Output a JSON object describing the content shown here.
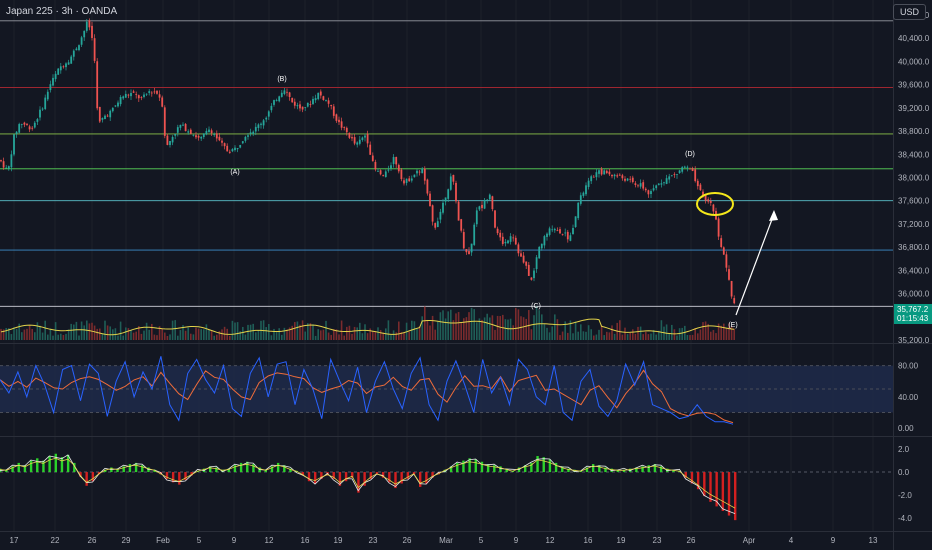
{
  "header": {
    "title": "Japan 225 · 3h · OANDA",
    "currency": "USD"
  },
  "colors": {
    "up": "#26a69a",
    "down": "#ef5350",
    "volume_ma": "#e3d34a",
    "stoch_k": "#2962ff",
    "stoch_d": "#ef6c3a",
    "hist_up": "#2bd32b",
    "hist_down": "#d32020",
    "circle": "#f5e81b",
    "arrow": "#ffffff"
  },
  "chart_data": [
    {
      "type": "candlestick",
      "instrument": "Japan 225",
      "timeframe": "3h",
      "ylim": [
        35200,
        40800
      ],
      "y_ticks": [
        "40,800.0",
        "40,400.0",
        "40,000.0",
        "39,600.0",
        "39,200.0",
        "38,800.0",
        "38,400.0",
        "38,000.0",
        "37,600.0",
        "37,200.0",
        "36,800.0",
        "36,400.0",
        "36,000.0",
        "35,200.0"
      ],
      "x_ticks": [
        "17",
        "22",
        "26",
        "29",
        "Feb",
        "5",
        "9",
        "12",
        "16",
        "19",
        "23",
        "26",
        "Mar",
        "5",
        "9",
        "12",
        "16",
        "19",
        "23",
        "26",
        "Apr",
        "4",
        "9",
        "13"
      ],
      "price_path": [
        [
          0,
          38300
        ],
        [
          8,
          38100
        ],
        [
          14,
          38700
        ],
        [
          20,
          38950
        ],
        [
          32,
          38850
        ],
        [
          42,
          39200
        ],
        [
          50,
          39600
        ],
        [
          60,
          39900
        ],
        [
          70,
          40050
        ],
        [
          80,
          40350
        ],
        [
          88,
          40700
        ],
        [
          94,
          40250
        ],
        [
          98,
          38900
        ],
        [
          104,
          39050
        ],
        [
          112,
          39150
        ],
        [
          122,
          39400
        ],
        [
          132,
          39450
        ],
        [
          142,
          39350
        ],
        [
          150,
          39500
        ],
        [
          158,
          39450
        ],
        [
          162,
          39300
        ],
        [
          166,
          38500
        ],
        [
          172,
          38700
        ],
        [
          180,
          38900
        ],
        [
          190,
          38800
        ],
        [
          200,
          38650
        ],
        [
          210,
          38850
        ],
        [
          220,
          38600
        ],
        [
          228,
          38450
        ],
        [
          236,
          38500
        ],
        [
          246,
          38750
        ],
        [
          256,
          38850
        ],
        [
          266,
          39050
        ],
        [
          276,
          39350
        ],
        [
          284,
          39550
        ],
        [
          292,
          39300
        ],
        [
          300,
          39200
        ],
        [
          308,
          39250
        ],
        [
          318,
          39450
        ],
        [
          328,
          39300
        ],
        [
          338,
          38950
        ],
        [
          348,
          38750
        ],
        [
          356,
          38550
        ],
        [
          366,
          38750
        ],
        [
          374,
          38150
        ],
        [
          384,
          38000
        ],
        [
          394,
          38350
        ],
        [
          404,
          37900
        ],
        [
          414,
          38050
        ],
        [
          422,
          38150
        ],
        [
          428,
          37650
        ],
        [
          434,
          37100
        ],
        [
          442,
          37500
        ],
        [
          452,
          38050
        ],
        [
          458,
          37350
        ],
        [
          464,
          36800
        ],
        [
          470,
          36650
        ],
        [
          476,
          37450
        ],
        [
          482,
          37500
        ],
        [
          490,
          37750
        ],
        [
          496,
          37050
        ],
        [
          504,
          36850
        ],
        [
          512,
          37050
        ],
        [
          520,
          36650
        ],
        [
          526,
          36450
        ],
        [
          532,
          36200
        ],
        [
          538,
          36750
        ],
        [
          544,
          36950
        ],
        [
          552,
          37150
        ],
        [
          562,
          37050
        ],
        [
          570,
          36950
        ],
        [
          578,
          37550
        ],
        [
          586,
          37850
        ],
        [
          594,
          38050
        ],
        [
          602,
          38100
        ],
        [
          612,
          38050
        ],
        [
          622,
          38000
        ],
        [
          634,
          37900
        ],
        [
          642,
          37850
        ],
        [
          650,
          37700
        ],
        [
          658,
          37900
        ],
        [
          668,
          38000
        ],
        [
          676,
          38050
        ],
        [
          684,
          38200
        ],
        [
          692,
          38100
        ],
        [
          698,
          37800
        ],
        [
          706,
          37600
        ],
        [
          712,
          37550
        ],
        [
          716,
          37250
        ],
        [
          720,
          36900
        ],
        [
          726,
          36500
        ],
        [
          732,
          35900
        ],
        [
          736,
          35780
        ]
      ],
      "horizontal_levels": [
        40700,
        39550,
        38750,
        38150,
        37600,
        36750,
        35780
      ],
      "wave_labels": [
        "(A)",
        "(B)",
        "(C)",
        "(D)",
        "(E)"
      ],
      "price_tag": {
        "price": "35,767.2",
        "countdown": "01:15:43"
      },
      "annotations": [
        "yellow circle near 37,700",
        "white arrow projecting up toward 37,600"
      ]
    },
    {
      "type": "line",
      "name": "Stochastic",
      "ylim": [
        -5,
        100
      ],
      "bands": [
        20,
        50,
        80
      ],
      "y_ticks": [
        "80.00",
        "40.00",
        "0.00"
      ],
      "series": [
        {
          "name": "K",
          "values": [
            62,
            45,
            72,
            40,
            80,
            55,
            20,
            75,
            80,
            35,
            82,
            70,
            15,
            60,
            85,
            40,
            72,
            50,
            92,
            30,
            10,
            70,
            88,
            62,
            45,
            80,
            25,
            15,
            70,
            90,
            40,
            82,
            85,
            30,
            75,
            50,
            12,
            88,
            60,
            35,
            78,
            20,
            60,
            85,
            50,
            25,
            70,
            90,
            30,
            10,
            60,
            86,
            55,
            20,
            88,
            45,
            65,
            30,
            88,
            75,
            40,
            30,
            80,
            20,
            10,
            60,
            75,
            28,
            15,
            35,
            82,
            55,
            85,
            30,
            25,
            20,
            12,
            15,
            30,
            15,
            8,
            8,
            5
          ]
        }
      ]
    },
    {
      "type": "bar",
      "name": "Momentum oscillator",
      "ylim": [
        -4.8,
        2.8
      ],
      "y_ticks": [
        "2.0",
        "0.0",
        "-2.0",
        "-4.0"
      ],
      "values": [
        0.3,
        0.2,
        0.5,
        0.8,
        0.6,
        1.0,
        1.2,
        1.0,
        1.4,
        1.6,
        1.3,
        1.5,
        0.8,
        -0.4,
        -1.2,
        -0.8,
        -0.2,
        0.2,
        0.4,
        0.3,
        0.5,
        0.7,
        0.8,
        0.6,
        0.4,
        0.2,
        -0.2,
        -0.6,
        -0.9,
        -1.1,
        -0.7,
        -0.3,
        0.1,
        0.3,
        0.5,
        0.4,
        0.2,
        0.3,
        0.6,
        0.8,
        0.9,
        0.7,
        0.4,
        0.2,
        0.5,
        0.8,
        0.6,
        0.3,
        0.1,
        -0.3,
        -0.8,
        -1.0,
        -0.6,
        -0.3,
        -0.6,
        -1.2,
        -0.8,
        -0.5,
        -1.8,
        -1.2,
        -0.6,
        -0.2,
        -0.5,
        -0.9,
        -1.4,
        -1.0,
        -0.6,
        -0.2,
        -1.3,
        -1.0,
        -0.5,
        -0.2,
        0.2,
        0.5,
        0.8,
        1.0,
        1.2,
        1.1,
        0.9,
        0.7,
        0.6,
        0.5,
        0.3,
        0.1,
        0.4,
        0.6,
        0.8,
        1.4,
        1.3,
        1.1,
        0.8,
        0.5,
        0.3,
        0.2,
        0.1,
        0.4,
        0.7,
        0.6,
        0.4,
        0.3,
        0.2,
        0.2,
        0.3,
        0.4,
        0.5,
        0.6,
        0.7,
        0.5,
        0.3,
        0.2,
        0.1,
        -0.5,
        -1.0,
        -1.5,
        -2.1,
        -2.6,
        -3.0,
        -3.4,
        -3.8,
        -4.2
      ],
      "y_ticks_label": ""
    }
  ]
}
